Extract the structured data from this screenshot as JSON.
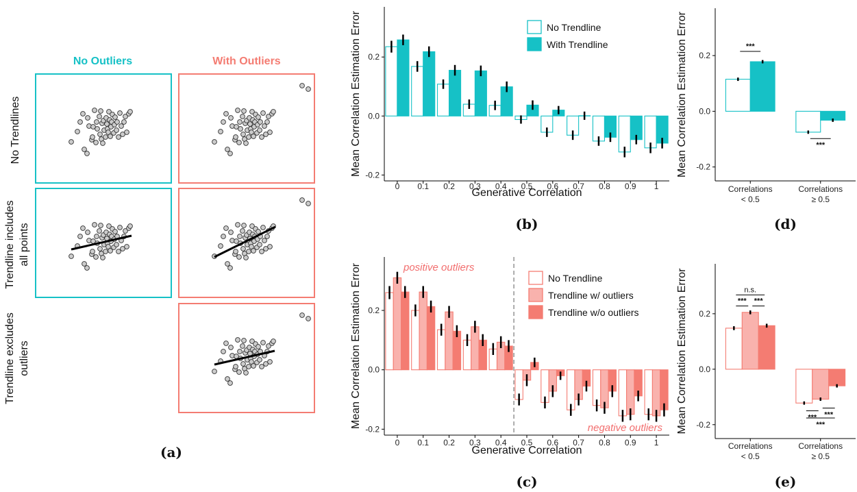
{
  "colors": {
    "teal": "#16c1c6",
    "salmon": "#f47c72",
    "salmon_light": "#f9b2ad",
    "salmon_fill": "#f47c72"
  },
  "panel_a": {
    "caption": "(a)",
    "col_headers": [
      "No Outliers",
      "With Outliers"
    ],
    "row_labels": [
      [
        "No Trendlines"
      ],
      [
        "Trendline includes",
        "all points"
      ],
      [
        "Trendline excludes",
        "outliers"
      ]
    ]
  },
  "chart_data": [
    {
      "id": "b",
      "caption": "(b)",
      "type": "bar",
      "xlabel": "Generative Correlation",
      "ylabel": "Mean Correlation Estimation Error",
      "ylim": [
        -0.22,
        0.37
      ],
      "yticks": [
        -0.2,
        0.0,
        0.2
      ],
      "ytick_labels": [
        "-0.2",
        "0.0",
        "0.2"
      ],
      "categories": [
        "0",
        "0.1",
        "0.2",
        "0.3",
        "0.4",
        "0.5",
        "0.6",
        "0.7",
        "0.8",
        "0.9",
        "1"
      ],
      "series": [
        {
          "name": "No Trendline",
          "style": "outline",
          "color": "#16c1c6",
          "values": [
            0.235,
            0.168,
            0.108,
            0.04,
            0.036,
            -0.012,
            -0.055,
            -0.065,
            -0.085,
            -0.122,
            -0.108
          ],
          "errors": [
            0.02,
            0.018,
            0.016,
            0.016,
            0.016,
            0.014,
            0.016,
            0.016,
            0.016,
            0.018,
            0.018
          ]
        },
        {
          "name": "With Trendline",
          "style": "filled",
          "color": "#16c1c6",
          "values": [
            0.258,
            0.218,
            0.155,
            0.153,
            0.099,
            0.037,
            0.02,
            0.001,
            -0.072,
            -0.08,
            -0.092
          ],
          "errors": [
            0.018,
            0.018,
            0.018,
            0.018,
            0.018,
            0.016,
            0.014,
            0.014,
            0.016,
            0.016,
            0.018
          ]
        }
      ],
      "legend_position": "top-right",
      "annotations": [],
      "sig_brackets": []
    },
    {
      "id": "d",
      "caption": "(d)",
      "type": "bar",
      "xlabel": "",
      "ylabel": "Mean Correlation Estimation Error",
      "ylim": [
        -0.25,
        0.37
      ],
      "yticks": [
        -0.2,
        0.0,
        0.2
      ],
      "ytick_labels": [
        "-0.2",
        "0.0",
        "0.2"
      ],
      "categories": [
        [
          "Correlations",
          "< 0.5"
        ],
        [
          "Correlations",
          "≥ 0.5"
        ]
      ],
      "series": [
        {
          "name": "No Trendline",
          "style": "outline",
          "color": "#16c1c6",
          "values": [
            0.115,
            -0.075
          ],
          "errors": [
            0.006,
            0.006
          ]
        },
        {
          "name": "With Trendline",
          "style": "filled",
          "color": "#16c1c6",
          "values": [
            0.178,
            -0.032
          ],
          "errors": [
            0.006,
            0.006
          ]
        }
      ],
      "annotations": [],
      "sig_brackets": [
        {
          "label": "***",
          "group": 0,
          "from": 0,
          "to": 1,
          "y": 0.215
        },
        {
          "label": "***",
          "group": 1,
          "from": 0,
          "to": 1,
          "y": -0.098,
          "below": true
        }
      ]
    },
    {
      "id": "c",
      "caption": "(c)",
      "type": "bar",
      "xlabel": "Generative Correlation",
      "ylabel": "Mean Correlation Estimation Error",
      "ylim": [
        -0.22,
        0.38
      ],
      "yticks": [
        -0.2,
        0.0,
        0.2
      ],
      "ytick_labels": [
        "-0.2",
        "0.0",
        "0.2"
      ],
      "categories": [
        "0",
        "0.1",
        "0.2",
        "0.3",
        "0.4",
        "0.5",
        "0.6",
        "0.7",
        "0.8",
        "0.9",
        "1"
      ],
      "series": [
        {
          "name": "No Trendline",
          "style": "outline",
          "color": "#f47c72",
          "values": [
            0.26,
            0.2,
            0.135,
            0.1,
            0.07,
            -0.1,
            -0.11,
            -0.135,
            -0.12,
            -0.155,
            -0.15
          ],
          "errors": [
            0.022,
            0.02,
            0.02,
            0.02,
            0.02,
            0.02,
            0.02,
            0.02,
            0.02,
            0.02,
            0.02
          ]
        },
        {
          "name": "Trendline w/ outliers",
          "style": "light",
          "color": "#f9b2ad",
          "values": [
            0.31,
            0.262,
            0.195,
            0.145,
            0.093,
            -0.035,
            -0.072,
            -0.1,
            -0.128,
            -0.15,
            -0.155
          ],
          "errors": [
            0.02,
            0.02,
            0.02,
            0.02,
            0.02,
            0.02,
            0.02,
            0.02,
            0.02,
            0.02,
            0.02
          ]
        },
        {
          "name": "Trendline w/o outliers",
          "style": "filled",
          "color": "#f47c72",
          "values": [
            0.262,
            0.213,
            0.13,
            0.1,
            0.08,
            0.025,
            -0.02,
            -0.055,
            -0.072,
            -0.088,
            -0.135
          ],
          "errors": [
            0.02,
            0.02,
            0.02,
            0.02,
            0.02,
            0.016,
            0.014,
            0.018,
            0.02,
            0.018,
            0.022
          ]
        }
      ],
      "legend_position": "top-right",
      "divider_between": [
        4,
        5
      ],
      "annotations": [
        {
          "text": "positive outliers",
          "position": "top-left"
        },
        {
          "text": "negative outliers",
          "position": "bottom-right"
        }
      ],
      "sig_brackets": []
    },
    {
      "id": "e",
      "caption": "(e)",
      "type": "bar",
      "xlabel": "",
      "ylabel": "Mean Correlation Estimation Error",
      "ylim": [
        -0.25,
        0.38
      ],
      "yticks": [
        -0.2,
        0.0,
        0.2
      ],
      "ytick_labels": [
        "-0.2",
        "0.0",
        "0.2"
      ],
      "categories": [
        [
          "Correlations",
          "< 0.5"
        ],
        [
          "Correlations",
          "≥ 0.5"
        ]
      ],
      "series": [
        {
          "name": "No Trendline",
          "style": "outline",
          "color": "#f47c72",
          "values": [
            0.148,
            -0.122
          ],
          "errors": [
            0.007,
            0.006
          ]
        },
        {
          "name": "Trendline w/ outliers",
          "style": "light",
          "color": "#f9b2ad",
          "values": [
            0.205,
            -0.108
          ],
          "errors": [
            0.007,
            0.006
          ]
        },
        {
          "name": "Trendline w/o outliers",
          "style": "filled",
          "color": "#f47c72",
          "values": [
            0.157,
            -0.06
          ],
          "errors": [
            0.007,
            0.006
          ]
        }
      ],
      "annotations": [],
      "sig_brackets": [
        {
          "label": "n.s.",
          "group": 0,
          "from": 0,
          "to": 2,
          "y": 0.268
        },
        {
          "label": "***",
          "group": 0,
          "from": 0,
          "to": 1,
          "y": 0.228
        },
        {
          "label": "***",
          "group": 0,
          "from": 1,
          "to": 2,
          "y": 0.228
        },
        {
          "label": "***",
          "group": 1,
          "from": 0,
          "to": 1,
          "y": -0.15,
          "below": true
        },
        {
          "label": "***",
          "group": 1,
          "from": 1,
          "to": 2,
          "y": -0.14,
          "below": true
        },
        {
          "label": "***",
          "group": 1,
          "from": 0,
          "to": 2,
          "y": -0.176,
          "below": true
        }
      ]
    }
  ]
}
